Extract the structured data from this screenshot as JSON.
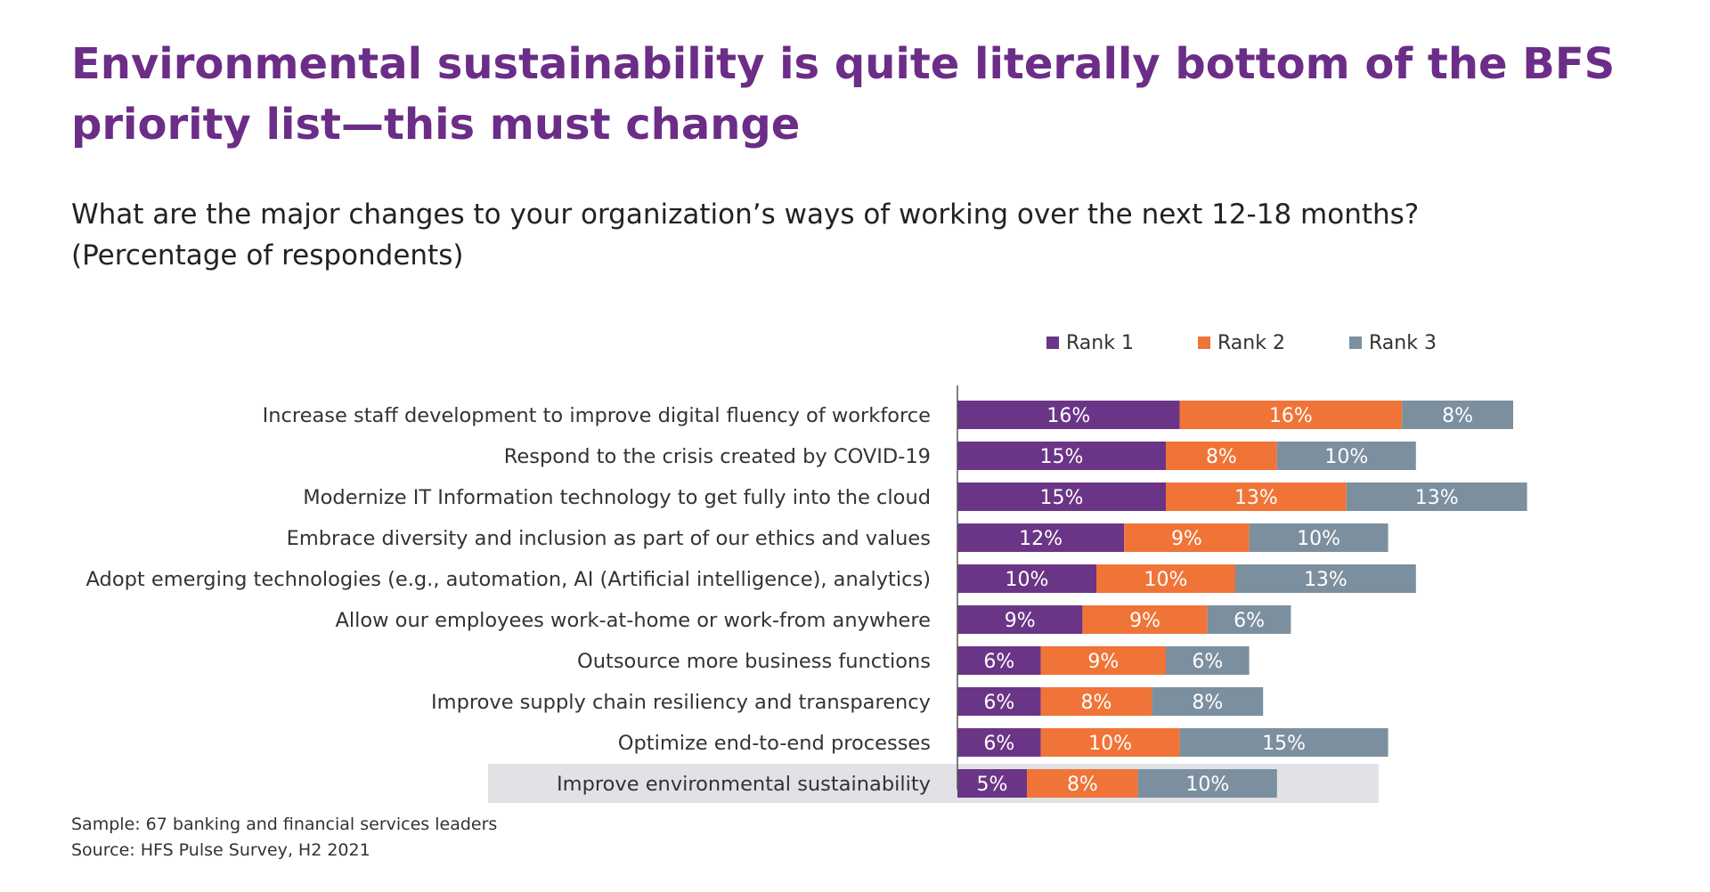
{
  "title": "Environmental sustainability is quite literally bottom of the BFS priority list—this must change",
  "subtitle": {
    "question": "What are the major changes to your organization’s ways of working over the next 12-18 months?",
    "unit": "(Percentage of respondents)"
  },
  "colors": {
    "rank1": "#6b3587",
    "rank2": "#f07437",
    "rank3": "#7b8f9f",
    "highlight": "#e1e1e6",
    "title": "#6b2d87"
  },
  "chart_data": {
    "type": "bar",
    "orientation": "horizontal",
    "stacked": true,
    "legend_position": "top",
    "grid": false,
    "categories": [
      "Increase staff development to improve digital fluency of workforce",
      "Respond to the crisis created by COVID-19",
      "Modernize IT Information technology to get fully into the cloud",
      "Embrace diversity and inclusion as part of our ethics and values",
      "Adopt emerging technologies (e.g., automation, AI (Artificial intelligence), analytics)",
      "Allow our employees work-at-home or work-from anywhere",
      "Outsource more business functions",
      "Improve supply chain resiliency and transparency",
      "Optimize end-to-end processes",
      "Improve environmental sustainability"
    ],
    "highlighted_category": "Improve environmental sustainability",
    "series": [
      {
        "name": "Rank 1",
        "color": "#6b3587",
        "values": [
          16,
          15,
          15,
          12,
          10,
          9,
          6,
          6,
          6,
          5
        ]
      },
      {
        "name": "Rank 2",
        "color": "#f07437",
        "values": [
          16,
          8,
          13,
          9,
          10,
          9,
          9,
          8,
          10,
          8
        ]
      },
      {
        "name": "Rank 3",
        "color": "#7b8f9f",
        "values": [
          8,
          10,
          13,
          10,
          13,
          6,
          6,
          8,
          15,
          10
        ]
      }
    ],
    "value_suffix": "%"
  },
  "footnotes": {
    "sample": "Sample: 67 banking and financial services leaders",
    "source": "Source: HFS Pulse Survey, H2 2021"
  }
}
